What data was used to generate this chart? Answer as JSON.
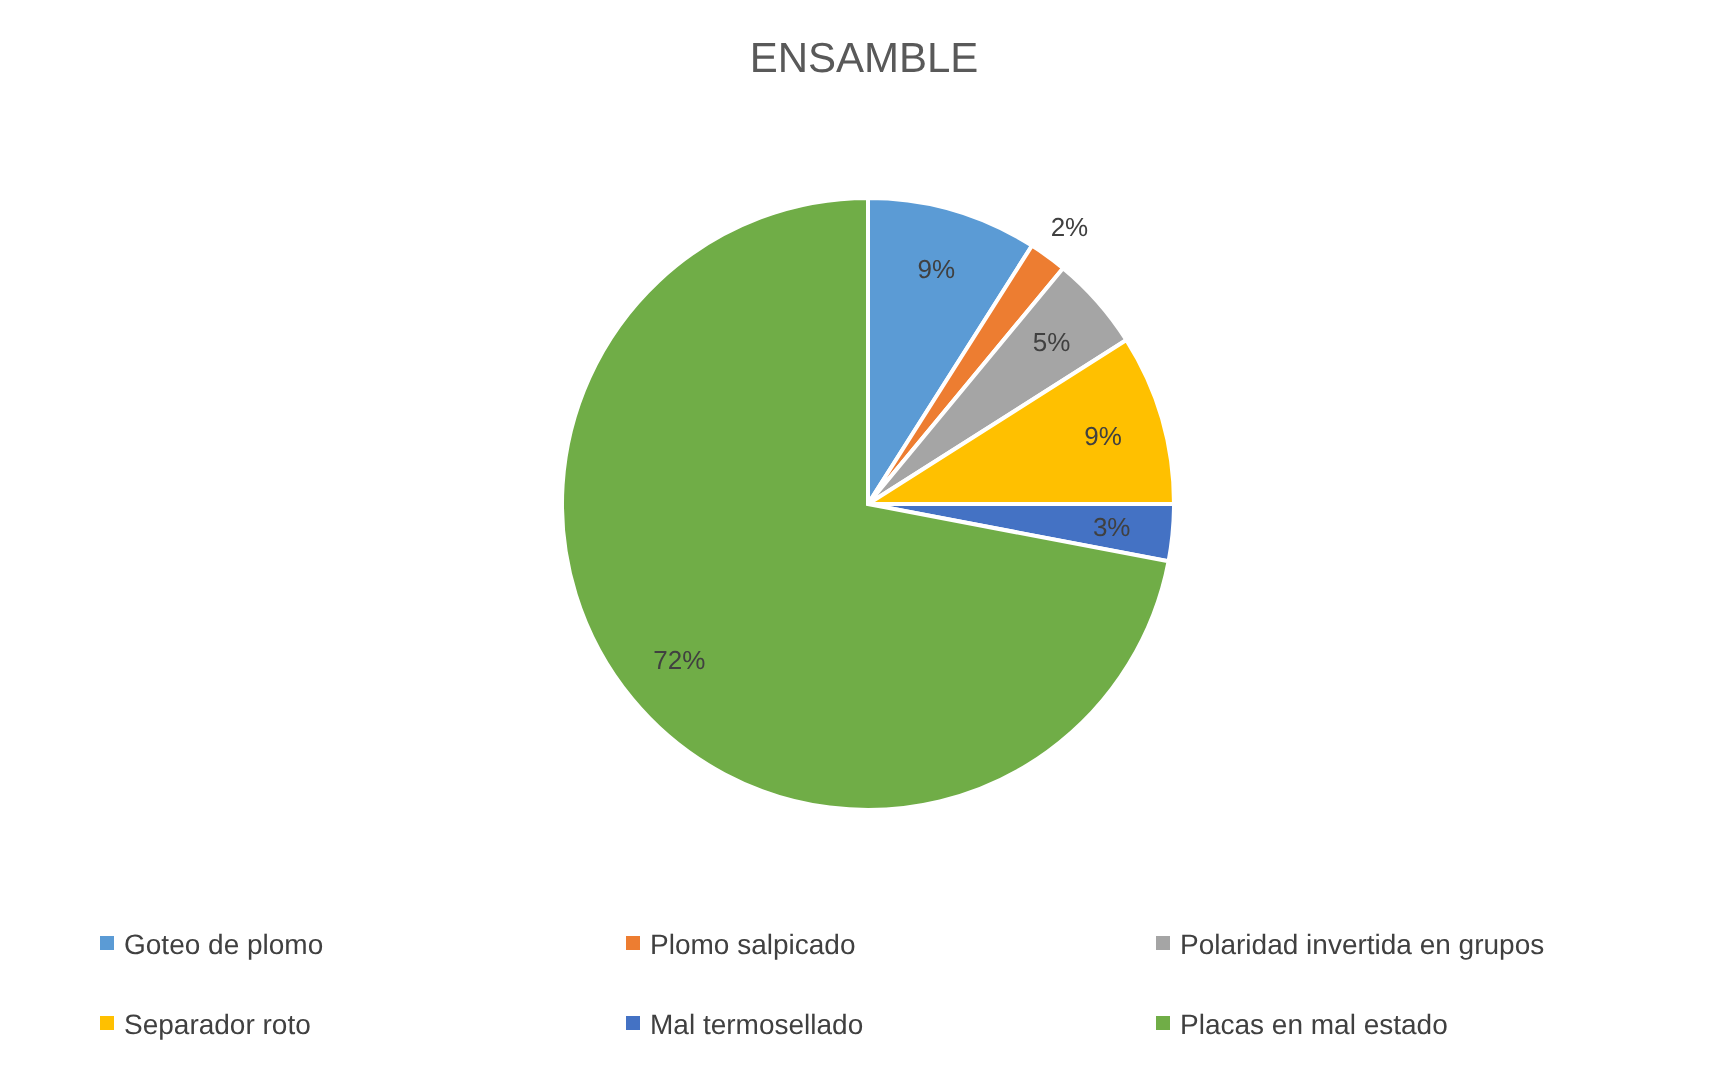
{
  "chart_data": {
    "type": "pie",
    "title": "ENSAMBLE",
    "categories": [
      "Goteo de plomo",
      "Plomo salpicado",
      "Polaridad invertida en grupos",
      "Separador roto",
      "Mal termosellado",
      "Placas en mal estado"
    ],
    "values": [
      9,
      2,
      5,
      9,
      3,
      72
    ],
    "colors": [
      "#5b9bd5",
      "#ed7d31",
      "#a5a5a5",
      "#ffc000",
      "#4472c4",
      "#70ad47"
    ],
    "value_labels": [
      "9%",
      "2%",
      "5%",
      "9%",
      "3%",
      "72%"
    ],
    "legend": "bottom"
  }
}
